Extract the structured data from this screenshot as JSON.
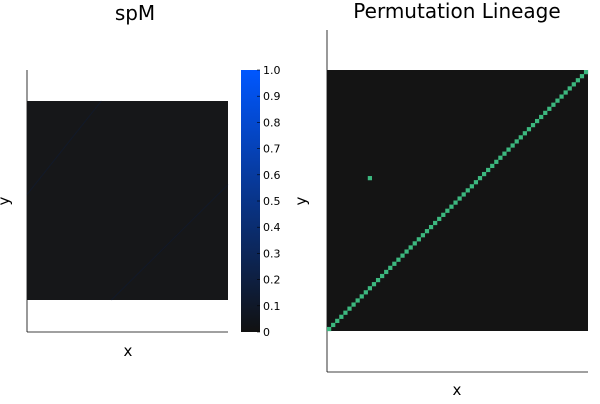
{
  "chart_data": [
    {
      "type": "heatmap",
      "title": "spM",
      "xlabel": "x",
      "ylabel": "y",
      "colorbar": {
        "ticks": [
          "0",
          "0.1",
          "0.2",
          "0.3",
          "0.4",
          "0.5",
          "0.6",
          "0.7",
          "0.8",
          "0.9",
          "1.0"
        ],
        "range": [
          0,
          1
        ],
        "low_color": "#111111",
        "high_color": "#0057ff"
      },
      "background_color": "#161719",
      "faint_diagonals": [
        {
          "from": [
            0.0,
            0.53
          ],
          "to": [
            0.37,
            1.0
          ],
          "value": 0.04
        },
        {
          "from": [
            0.42,
            0.0
          ],
          "to": [
            1.0,
            0.58
          ],
          "value": 0.04
        }
      ]
    },
    {
      "type": "heatmap",
      "title": "Permutation Lineage",
      "xlabel": "x",
      "ylabel": "y",
      "grid_size": 64,
      "background_color": "#141414",
      "marker_color": "#3cb87f",
      "extra_points": [
        [
          10,
          37
        ]
      ]
    }
  ]
}
